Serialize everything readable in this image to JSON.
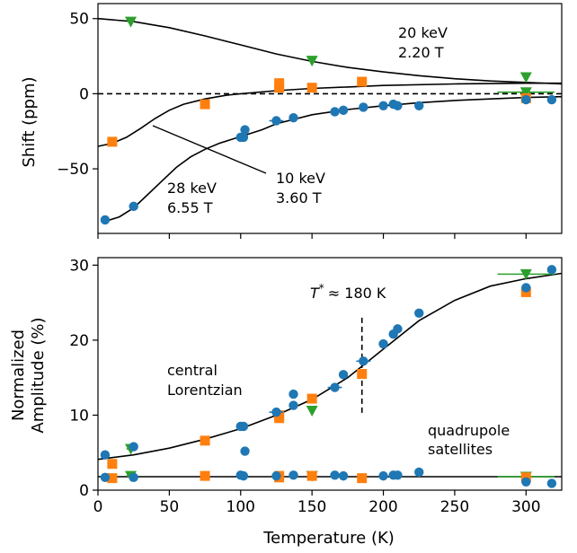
{
  "colors": {
    "blue": "#1f77b4",
    "orange": "#ff7f0e",
    "green": "#2ca02c",
    "line": "#000000"
  },
  "chart_data": [
    {
      "type": "scatter",
      "xlabel": "",
      "ylabel": "Shift (ppm)",
      "xlim": [
        0,
        325
      ],
      "ylim": [
        -93,
        60
      ],
      "xticks": [
        0,
        50,
        100,
        150,
        200,
        250,
        300
      ],
      "yticks": [
        50,
        0,
        -50
      ],
      "ytick_labels": [
        "50",
        "0",
        "−50"
      ],
      "grid": false,
      "annotations": {
        "a20": {
          "line1": "20 keV",
          "line2": "2.20 T"
        },
        "a10": {
          "line1": "10 keV",
          "line2": "3.60 T"
        },
        "a28": {
          "line1": "28 keV",
          "line2": "6.55 T"
        }
      },
      "series": [
        {
          "marker": "triangle-down",
          "color": "#2ca02c",
          "points": [
            [
              23,
              48
            ],
            [
              150,
              22
            ],
            [
              300,
              11
            ],
            [
              300,
              1
            ]
          ],
          "xerr": [
            2,
            0,
            0,
            20
          ]
        },
        {
          "marker": "square",
          "color": "#ff7f0e",
          "points": [
            [
              10,
              -32
            ],
            [
              75,
              -7
            ],
            [
              127,
              4
            ],
            [
              127,
              7
            ],
            [
              150,
              4
            ],
            [
              185,
              8
            ],
            [
              300,
              -3
            ]
          ]
        },
        {
          "marker": "circle",
          "color": "#1f77b4",
          "points": [
            [
              5,
              -84
            ],
            [
              25,
              -75
            ],
            [
              100,
              -29
            ],
            [
              102,
              -29
            ],
            [
              103,
              -24
            ],
            [
              125,
              -18
            ],
            [
              137,
              -16
            ],
            [
              166,
              -12
            ],
            [
              172,
              -11
            ],
            [
              186,
              -9
            ],
            [
              200,
              -8
            ],
            [
              207,
              -7
            ],
            [
              210,
              -8
            ],
            [
              225,
              -8
            ],
            [
              300,
              -4
            ],
            [
              318,
              -4
            ]
          ],
          "xerr": [
            0,
            0,
            0,
            0,
            0,
            5,
            0,
            0,
            0,
            0,
            0,
            0,
            0,
            0,
            0,
            0
          ]
        }
      ],
      "curves": {
        "green_fit": [
          [
            0,
            50
          ],
          [
            25,
            48
          ],
          [
            50,
            44
          ],
          [
            75,
            38.5
          ],
          [
            100,
            32.5
          ],
          [
            125,
            26.5
          ],
          [
            150,
            21.5
          ],
          [
            175,
            17.5
          ],
          [
            200,
            14.5
          ],
          [
            225,
            12
          ],
          [
            250,
            10
          ],
          [
            275,
            8.5
          ],
          [
            300,
            7.5
          ],
          [
            325,
            6.5
          ]
        ],
        "orange_fit": [
          [
            0,
            -35
          ],
          [
            10,
            -33
          ],
          [
            20,
            -29
          ],
          [
            30,
            -23
          ],
          [
            40,
            -16.5
          ],
          [
            50,
            -11
          ],
          [
            60,
            -7
          ],
          [
            75,
            -3.5
          ],
          [
            90,
            -1
          ],
          [
            100,
            0
          ],
          [
            125,
            2
          ],
          [
            150,
            3.5
          ],
          [
            175,
            4.5
          ],
          [
            200,
            5.5
          ],
          [
            250,
            6.5
          ],
          [
            300,
            7
          ],
          [
            325,
            7
          ]
        ],
        "blue_fit": [
          [
            5,
            -85
          ],
          [
            15,
            -82
          ],
          [
            25,
            -76
          ],
          [
            35,
            -67
          ],
          [
            45,
            -58
          ],
          [
            55,
            -49
          ],
          [
            65,
            -42
          ],
          [
            75,
            -37
          ],
          [
            85,
            -33
          ],
          [
            100,
            -28.5
          ],
          [
            115,
            -24
          ],
          [
            125,
            -20
          ],
          [
            150,
            -14
          ],
          [
            175,
            -10.5
          ],
          [
            200,
            -8
          ],
          [
            225,
            -6
          ],
          [
            250,
            -4.5
          ],
          [
            275,
            -3.5
          ],
          [
            300,
            -2.5
          ],
          [
            325,
            -2
          ]
        ]
      }
    },
    {
      "type": "scatter",
      "xlabel": "Temperature (K)",
      "ylabel_line1": "Normalized",
      "ylabel_line2": "Amplitude (%)",
      "xlim": [
        0,
        325
      ],
      "ylim": [
        0,
        31
      ],
      "xticks": [
        0,
        50,
        100,
        150,
        200,
        250,
        300
      ],
      "xtick_labels": [
        "0",
        "50",
        "100",
        "150",
        "200",
        "250",
        "300"
      ],
      "yticks": [
        0,
        10,
        20,
        30
      ],
      "grid": false,
      "tstar": {
        "text": "≈ 180 K",
        "T": "T",
        "sup": "*",
        "x": 185,
        "y_range": [
          10,
          23
        ]
      },
      "annotations": {
        "central": {
          "line1": "central",
          "line2": "Lorentzian"
        },
        "quad": {
          "line1": "quadrupole",
          "line2": "satellites"
        }
      },
      "series": [
        {
          "marker": "triangle-down",
          "color": "#2ca02c",
          "points": [
            [
              23,
              5.5
            ],
            [
              150,
              10.6
            ],
            [
              300,
              28.8
            ],
            [
              23,
              1.9
            ],
            [
              150,
              1.9
            ],
            [
              300,
              1.8
            ]
          ],
          "xerr": [
            3,
            0,
            20,
            3,
            0,
            20
          ]
        },
        {
          "marker": "square",
          "color": "#ff7f0e",
          "points": [
            [
              10,
              3.5
            ],
            [
              75,
              6.6
            ],
            [
              127,
              10
            ],
            [
              127,
              9.6
            ],
            [
              150,
              12.2
            ],
            [
              185,
              15.5
            ],
            [
              300,
              26.4
            ],
            [
              10,
              1.6
            ],
            [
              75,
              1.9
            ],
            [
              127,
              1.7
            ],
            [
              127,
              1.9
            ],
            [
              150,
              1.9
            ],
            [
              185,
              1.6
            ],
            [
              300,
              1.7
            ]
          ]
        },
        {
          "marker": "circle",
          "color": "#1f77b4",
          "points": [
            [
              5,
              4.7
            ],
            [
              25,
              5.8
            ],
            [
              100,
              8.5
            ],
            [
              102,
              8.5
            ],
            [
              103,
              5.2
            ],
            [
              125,
              10.4
            ],
            [
              137,
              12.8
            ],
            [
              137,
              11.3
            ],
            [
              166,
              13.7
            ],
            [
              172,
              15.4
            ],
            [
              186,
              17.2
            ],
            [
              200,
              19.5
            ],
            [
              207,
              20.8
            ],
            [
              210,
              21.5
            ],
            [
              225,
              23.6
            ],
            [
              300,
              27
            ],
            [
              318,
              29.4
            ],
            [
              5,
              1.7
            ],
            [
              25,
              1.7
            ],
            [
              100,
              2
            ],
            [
              102,
              1.9
            ],
            [
              125,
              1.9
            ],
            [
              137,
              2
            ],
            [
              166,
              2
            ],
            [
              172,
              1.9
            ],
            [
              200,
              1.9
            ],
            [
              207,
              2
            ],
            [
              210,
              2
            ],
            [
              225,
              2.4
            ],
            [
              300,
              1.1
            ],
            [
              318,
              0.9
            ]
          ],
          "xerr": [
            0,
            0,
            0,
            0,
            0,
            5,
            0,
            0,
            5,
            0,
            5,
            0,
            0,
            0,
            0,
            0,
            0,
            0,
            0,
            0,
            0,
            0,
            0,
            0,
            0,
            0,
            0,
            0,
            0,
            0,
            0
          ]
        }
      ],
      "curves": {
        "central_fit": [
          [
            0,
            4.1
          ],
          [
            25,
            4.7
          ],
          [
            50,
            5.6
          ],
          [
            75,
            6.8
          ],
          [
            100,
            8.2
          ],
          [
            125,
            10
          ],
          [
            150,
            12.1
          ],
          [
            175,
            15
          ],
          [
            200,
            18.8
          ],
          [
            225,
            22.6
          ],
          [
            250,
            25.3
          ],
          [
            275,
            27.2
          ],
          [
            300,
            28.2
          ],
          [
            325,
            28.9
          ]
        ],
        "satellite_fit": [
          [
            0,
            1.8
          ],
          [
            325,
            1.8
          ]
        ]
      }
    }
  ]
}
